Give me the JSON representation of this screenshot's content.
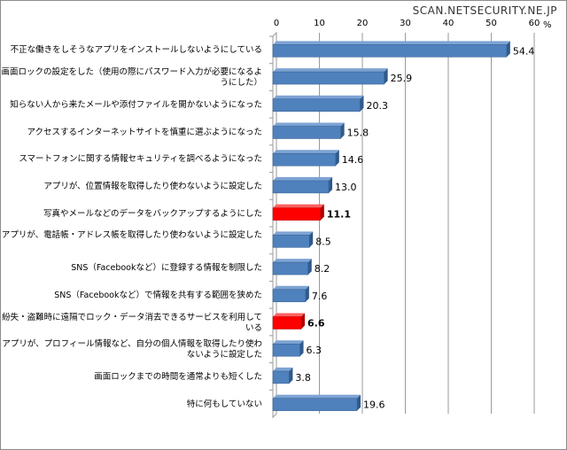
{
  "watermark": "SCAN.NETSECURITY.NE.JP",
  "chart_data": {
    "type": "bar",
    "orientation": "horizontal",
    "unit_label": "%",
    "xlim": [
      0,
      60
    ],
    "ticks": [
      "0",
      "10",
      "20",
      "30",
      "40",
      "50",
      "60"
    ],
    "grid": true,
    "colors": {
      "default": "#4f81bd",
      "highlight": "#ff0000"
    },
    "categories": [
      "不正な働きをしそうなアプリをインストールしないようにしている",
      "画面ロックの設定をした（使用の際にパスワード入力が必要になるようにした）",
      "知らない人から来たメールや添付ファイルを開かないようになった",
      "アクセスするインターネットサイトを慎重に選ぶようになった",
      "スマートフォンに関する情報セキュリティを調べるようになった",
      "アプリが、位置情報を取得したり使わないように設定した",
      "写真やメールなどのデータをバックアップするようにした",
      "アプリが、電話帳・アドレス帳を取得したり使わないように設定した",
      "SNS（Facebookなど）に登録する情報を制限した",
      "SNS（Facebookなど）で情報を共有する範囲を狭めた",
      "紛失・盗難時に遠隔でロック・データ消去できるサービスを利用している",
      "アプリが、プロフィール情報など、自分の個人情報を取得したり使わないように設定した",
      "画面ロックまでの時間を通常よりも短くした",
      "特に何もしていない"
    ],
    "values": [
      54.4,
      25.9,
      20.3,
      15.8,
      14.6,
      13.0,
      11.1,
      8.5,
      8.2,
      7.6,
      6.6,
      6.3,
      3.8,
      19.6
    ],
    "labels": [
      "54.4",
      "25.9",
      "20.3",
      "15.8",
      "14.6",
      "13.0",
      "11.1",
      "8.5",
      "8.2",
      "7.6",
      "6.6",
      "6.3",
      "3.8",
      "19.6"
    ],
    "highlighted": [
      false,
      false,
      false,
      false,
      false,
      false,
      true,
      false,
      false,
      false,
      true,
      false,
      false,
      false
    ]
  }
}
